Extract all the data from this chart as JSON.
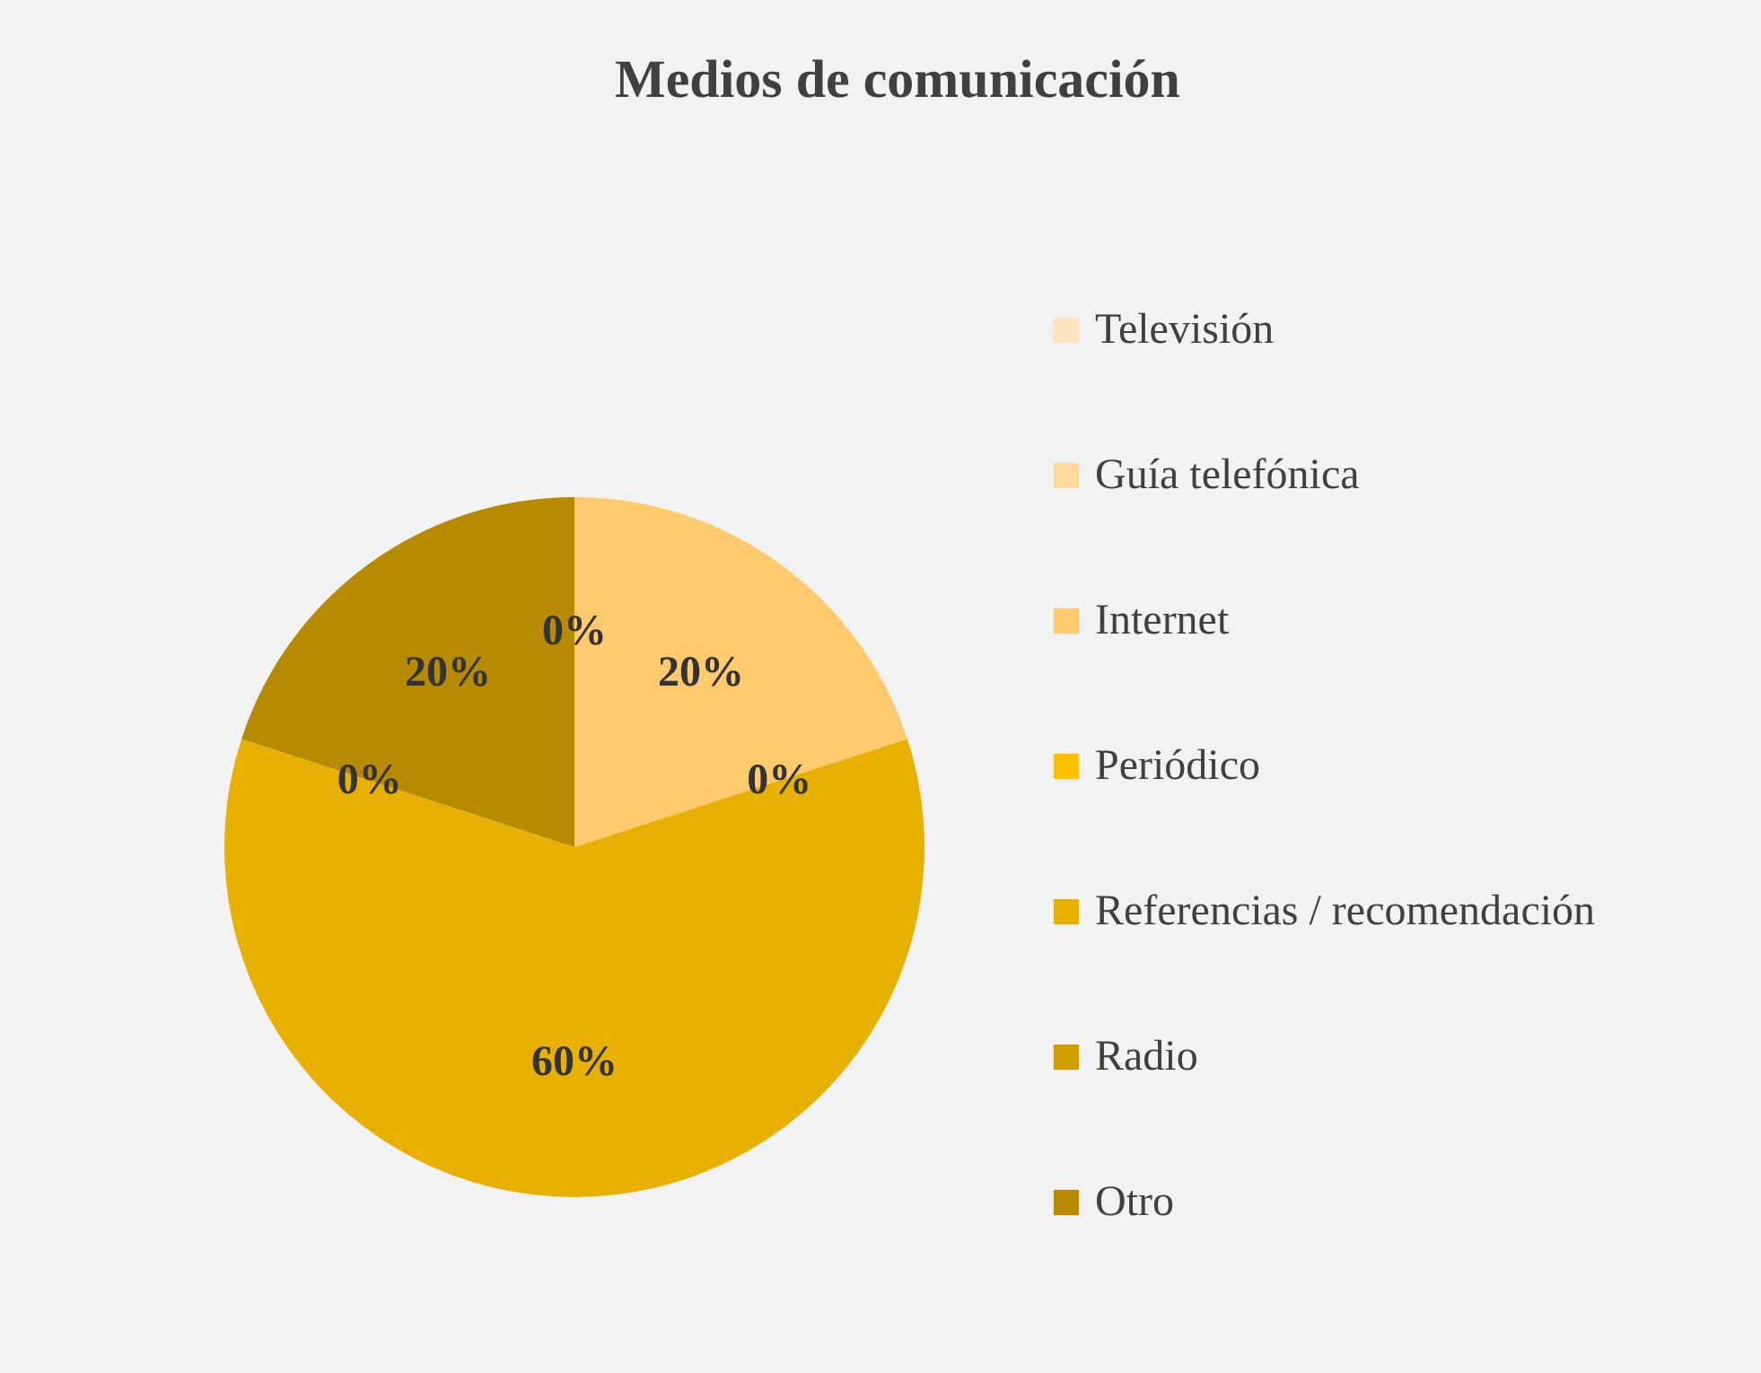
{
  "chart_data": {
    "type": "pie",
    "title": "Medios de comunicación",
    "categories": [
      "Televisión",
      "Guía telefónica",
      "Internet",
      "Periódico",
      "Referencias / recomendación",
      "Radio",
      "Otro"
    ],
    "values": [
      0,
      0,
      20,
      0,
      60,
      0,
      20
    ],
    "colors": [
      "#ffe2c0",
      "#ffd89e",
      "#ffc96e",
      "#ffc000",
      "#e8b000",
      "#d09e00",
      "#b88a00"
    ],
    "value_labels": [
      "0%",
      null,
      "20%",
      "0%",
      "60%",
      "0%",
      "20%"
    ],
    "legend": "right"
  }
}
